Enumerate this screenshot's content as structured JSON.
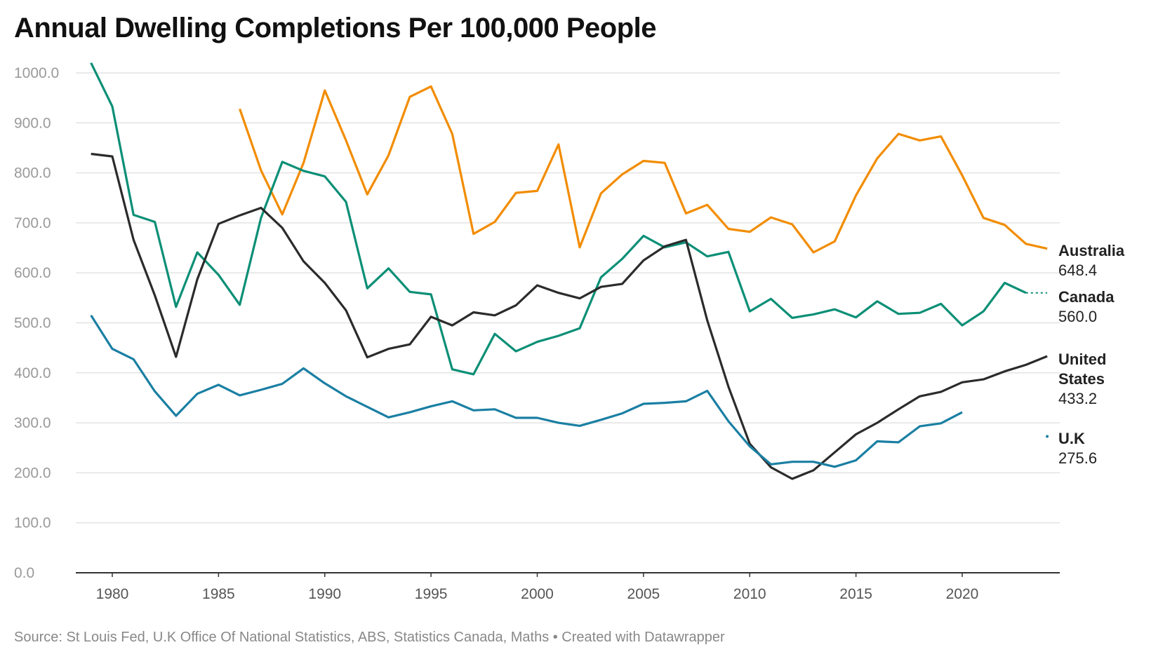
{
  "chart_data": {
    "type": "line",
    "title": "Annual Dwelling Completions Per 100,000 People",
    "xlabel": "",
    "ylabel": "",
    "ylim": [
      0,
      1000
    ],
    "xlim": [
      1979,
      2024
    ],
    "grid": true,
    "y_ticks": [
      "0.0",
      "100.0",
      "200.0",
      "300.0",
      "400.0",
      "500.0",
      "600.0",
      "700.0",
      "800.0",
      "900.0",
      "1000.0"
    ],
    "x_ticks": [
      "1980",
      "1985",
      "1990",
      "1995",
      "2000",
      "2005",
      "2010",
      "2015",
      "2020"
    ],
    "series": [
      {
        "name": "Australia",
        "label_lines": [
          "Australia"
        ],
        "last_value": "648.4",
        "color": "#f28c00",
        "start": 1986,
        "values": [
          928,
          805,
          717,
          820,
          965,
          865,
          757,
          835,
          952,
          973,
          878,
          678,
          702,
          760,
          764,
          857,
          651,
          759,
          797,
          824,
          820,
          719,
          736,
          688,
          682,
          711,
          697,
          641,
          663,
          755,
          829,
          878,
          865,
          873,
          795,
          710,
          696,
          658,
          648.4
        ]
      },
      {
        "name": "Canada",
        "label_lines": [
          "Canada"
        ],
        "last_value": "560.0",
        "color": "#0b8f76",
        "start": 1979,
        "values": [
          1020,
          933,
          716,
          702,
          532,
          641,
          596,
          536,
          710,
          822,
          804,
          793,
          742,
          569,
          609,
          562,
          557,
          407,
          397,
          478,
          443,
          462,
          474,
          489,
          591,
          628,
          674,
          651,
          661,
          633,
          642,
          523,
          548,
          510,
          517,
          527,
          511,
          543,
          518,
          520,
          538,
          495,
          523,
          580,
          560
        ],
        "projected": {
          "year": 2024,
          "value": 560.0
        }
      },
      {
        "name": "United States",
        "label_lines": [
          "United",
          "States"
        ],
        "last_value": "433.2",
        "color": "#2b2b2b",
        "start": 1979,
        "values": [
          838,
          833,
          666,
          555,
          432,
          587,
          698,
          715,
          730,
          690,
          623,
          580,
          525,
          431,
          448,
          457,
          512,
          495,
          521,
          515,
          535,
          575,
          560,
          549,
          572,
          578,
          625,
          653,
          666,
          505,
          372,
          258,
          211,
          188,
          205,
          241,
          277,
          300,
          327,
          353,
          362,
          381,
          387,
          403,
          416,
          433.2
        ]
      },
      {
        "name": "U.K",
        "label_lines": [
          "U.K"
        ],
        "last_value": "275.6",
        "color": "#1a7fa3",
        "start": 1979,
        "values": [
          515,
          448,
          427,
          363,
          314,
          358,
          376,
          355,
          366,
          378,
          409,
          379,
          353,
          332,
          311,
          321,
          333,
          343,
          325,
          327,
          310,
          310,
          300,
          294,
          306,
          319,
          338,
          340,
          343,
          364,
          303,
          253,
          217,
          222,
          222,
          212,
          225,
          263,
          261,
          293,
          299,
          321
        ],
        "point": {
          "year": 2024,
          "value": 275.6
        }
      }
    ]
  },
  "source": "Source: St Louis Fed, U.K Office Of National Statistics, ABS, Statistics Canada, Maths • Created with Datawrapper"
}
